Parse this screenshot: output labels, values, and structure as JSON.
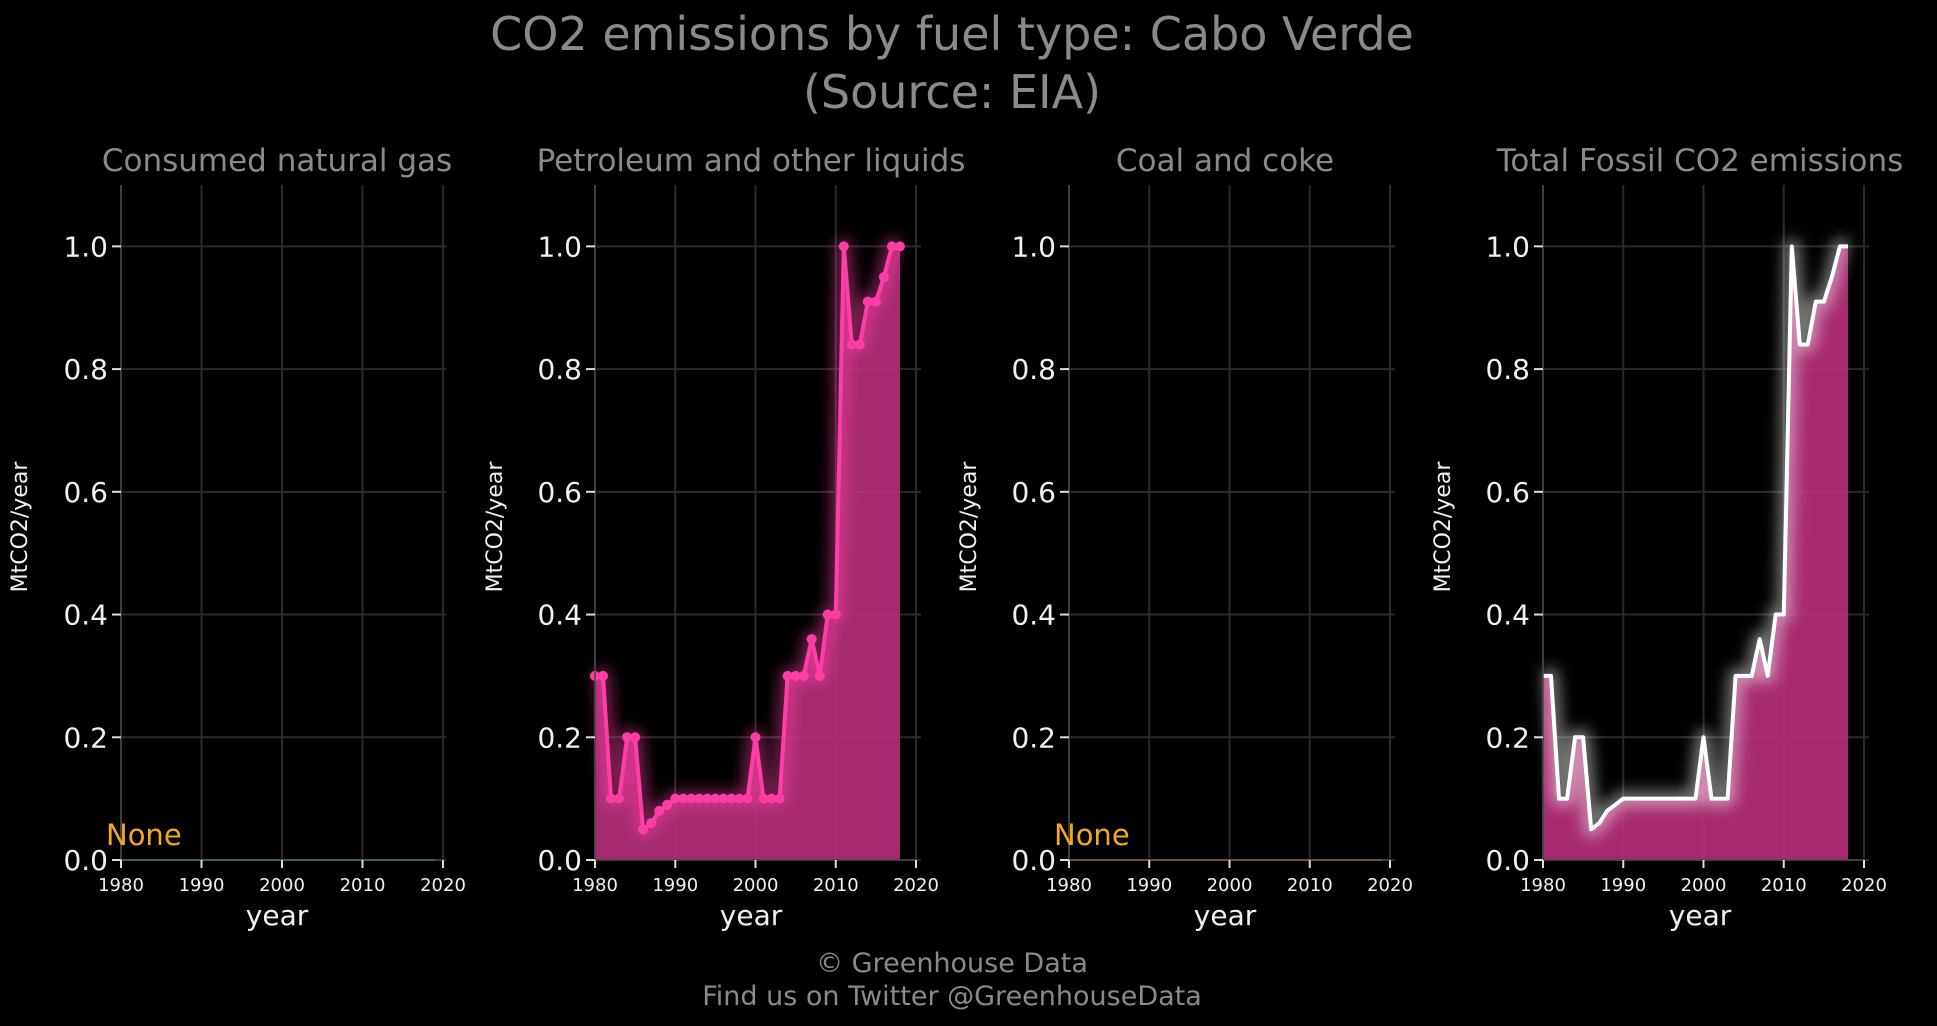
{
  "title": "CO2 emissions by fuel type: Cabo Verde",
  "subtitle": "(Source: EIA)",
  "footer": {
    "copyright": "© Greenhouse Data",
    "twitter": "Find us on Twitter @GreenhouseData"
  },
  "chart_data": [
    {
      "type": "line",
      "title": "Consumed natural gas",
      "xlabel": "year",
      "ylabel": "MtCO2/year",
      "xlim": [
        1980,
        2020
      ],
      "ylim": [
        0,
        1.1
      ],
      "xticks": [
        1980,
        1990,
        2000,
        2010,
        2020
      ],
      "yticks": [
        0.0,
        0.2,
        0.4,
        0.6,
        0.8,
        1.0
      ],
      "ytick_labels": [
        "0.0",
        "0.2",
        "0.4",
        "0.6",
        "0.8",
        "1.0"
      ],
      "grid": true,
      "annotation": "None",
      "color": "#17b3a3",
      "annotation_color": "#f5a623",
      "x": [
        1980,
        2019
      ],
      "values": [
        0,
        0
      ],
      "markers": false,
      "fill": false
    },
    {
      "type": "area",
      "title": "Petroleum and other liquids",
      "xlabel": "year",
      "ylabel": "MtCO2/year",
      "xlim": [
        1980,
        2020
      ],
      "ylim": [
        0,
        1.1
      ],
      "xticks": [
        1980,
        1990,
        2000,
        2010,
        2020
      ],
      "yticks": [
        0.0,
        0.2,
        0.4,
        0.6,
        0.8,
        1.0
      ],
      "ytick_labels": [
        "0.0",
        "0.2",
        "0.4",
        "0.6",
        "0.8",
        "1.0"
      ],
      "grid": true,
      "color": "#ff3ea5",
      "fill_color": "#b8307a",
      "x": [
        1980,
        1981,
        1982,
        1983,
        1984,
        1985,
        1986,
        1987,
        1988,
        1989,
        1990,
        1991,
        1992,
        1993,
        1994,
        1995,
        1996,
        1997,
        1998,
        1999,
        2000,
        2001,
        2002,
        2003,
        2004,
        2005,
        2006,
        2007,
        2008,
        2009,
        2010,
        2011,
        2012,
        2013,
        2014,
        2015,
        2016,
        2017,
        2018
      ],
      "values": [
        0.3,
        0.3,
        0.1,
        0.1,
        0.2,
        0.2,
        0.05,
        0.06,
        0.08,
        0.09,
        0.1,
        0.1,
        0.1,
        0.1,
        0.1,
        0.1,
        0.1,
        0.1,
        0.1,
        0.1,
        0.2,
        0.1,
        0.1,
        0.1,
        0.3,
        0.3,
        0.3,
        0.36,
        0.3,
        0.4,
        0.4,
        1.0,
        0.84,
        0.84,
        0.91,
        0.91,
        0.95,
        1.0,
        1.0
      ],
      "markers": true,
      "fill": true
    },
    {
      "type": "line",
      "title": "Coal and coke",
      "xlabel": "year",
      "ylabel": "MtCO2/year",
      "xlim": [
        1980,
        2020
      ],
      "ylim": [
        0,
        1.1
      ],
      "xticks": [
        1980,
        1990,
        2000,
        2010,
        2020
      ],
      "yticks": [
        0.0,
        0.2,
        0.4,
        0.6,
        0.8,
        1.0
      ],
      "ytick_labels": [
        "0.0",
        "0.2",
        "0.4",
        "0.6",
        "0.8",
        "1.0"
      ],
      "grid": true,
      "annotation": "None",
      "color": "#e07b25",
      "annotation_color": "#f5a623",
      "x": [
        1980,
        2019
      ],
      "values": [
        0,
        0
      ],
      "markers": false,
      "fill": false
    },
    {
      "type": "area",
      "title": "Total Fossil CO2 emissions",
      "xlabel": "year",
      "ylabel": "MtCO2/year",
      "xlim": [
        1980,
        2020
      ],
      "ylim": [
        0,
        1.1
      ],
      "xticks": [
        1980,
        1990,
        2000,
        2010,
        2020
      ],
      "yticks": [
        0.0,
        0.2,
        0.4,
        0.6,
        0.8,
        1.0
      ],
      "ytick_labels": [
        "0.0",
        "0.2",
        "0.4",
        "0.6",
        "0.8",
        "1.0"
      ],
      "grid": true,
      "color": "#ffffff",
      "fill_color": "#b8307a",
      "x": [
        1980,
        1981,
        1982,
        1983,
        1984,
        1985,
        1986,
        1987,
        1988,
        1989,
        1990,
        1991,
        1992,
        1993,
        1994,
        1995,
        1996,
        1997,
        1998,
        1999,
        2000,
        2001,
        2002,
        2003,
        2004,
        2005,
        2006,
        2007,
        2008,
        2009,
        2010,
        2011,
        2012,
        2013,
        2014,
        2015,
        2016,
        2017,
        2018
      ],
      "values": [
        0.3,
        0.3,
        0.1,
        0.1,
        0.2,
        0.2,
        0.05,
        0.06,
        0.08,
        0.09,
        0.1,
        0.1,
        0.1,
        0.1,
        0.1,
        0.1,
        0.1,
        0.1,
        0.1,
        0.1,
        0.2,
        0.1,
        0.1,
        0.1,
        0.3,
        0.3,
        0.3,
        0.36,
        0.3,
        0.4,
        0.4,
        1.0,
        0.84,
        0.84,
        0.91,
        0.91,
        0.95,
        1.0,
        1.0
      ],
      "markers": false,
      "fill": true
    }
  ]
}
